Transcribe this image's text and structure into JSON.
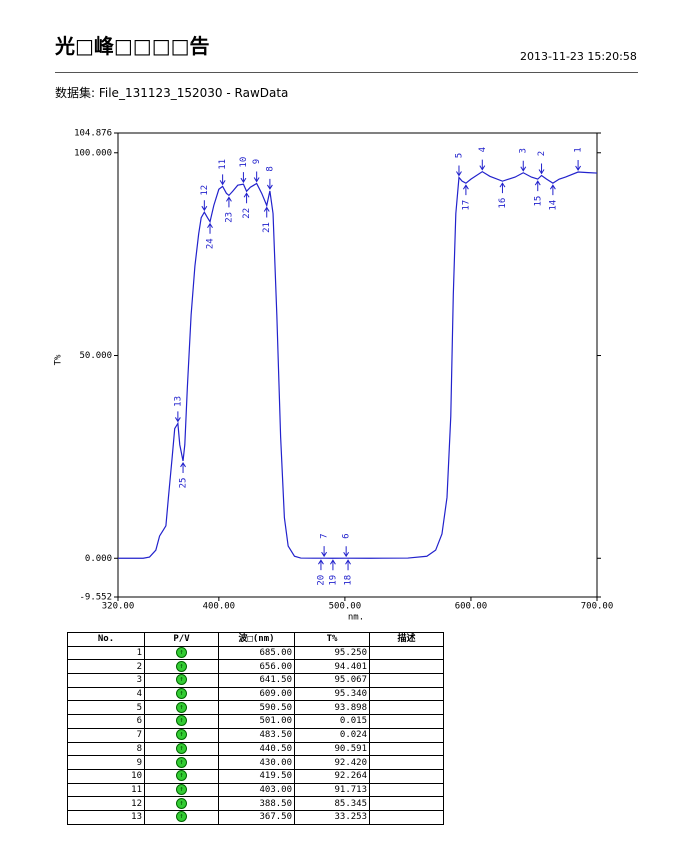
{
  "header": {
    "title": "光□峰□□□□告",
    "date": "2013-11-23  15:20:58",
    "subtitle": "数据集: File_131123_152030 - RawData"
  },
  "chart_data": {
    "type": "line",
    "x_label": "nm.",
    "y_label": "T%",
    "xlim": [
      320,
      700
    ],
    "xticks": [
      {
        "value": 320,
        "label": "320.00"
      },
      {
        "value": 400,
        "label": "400.00"
      },
      {
        "value": 500,
        "label": "500.00"
      },
      {
        "value": 600,
        "label": "600.00"
      },
      {
        "value": 700,
        "label": "700.00"
      }
    ],
    "ylim": [
      -9.552,
      104.876
    ],
    "yticks": [
      {
        "value": -9.552,
        "label": "-9.552"
      },
      {
        "value": 0,
        "label": "0.000"
      },
      {
        "value": 50,
        "label": "50.000"
      },
      {
        "value": 100,
        "label": "100.000"
      },
      {
        "value": 104.876,
        "label": "104.876"
      }
    ],
    "series": [
      {
        "color": "#2222cc",
        "x": [
          320,
          340,
          345,
          350,
          353,
          356,
          358,
          360,
          363,
          365,
          367.5,
          369,
          371.6,
          373,
          375,
          378,
          381,
          384,
          386,
          388.5,
          391,
          393,
          396,
          400,
          403,
          406,
          408,
          411,
          415,
          419.5,
          422,
          425,
          430,
          434,
          438,
          440.5,
          443,
          446,
          449,
          452,
          455,
          460,
          465,
          475,
          483.5,
          490,
          501,
          520,
          550,
          565,
          572,
          577,
          581,
          584,
          586,
          588,
          590.5,
          593,
          596,
          600,
          609,
          615,
          625,
          635,
          641.5,
          648,
          653,
          656,
          660,
          665,
          670,
          675,
          685,
          693,
          700
        ],
        "values": [
          0,
          0,
          0.3,
          2,
          5.5,
          7,
          8,
          15,
          25,
          32,
          33.253,
          28,
          24,
          28,
          42,
          60,
          72,
          80,
          84,
          85.345,
          84,
          83,
          87,
          91,
          91.713,
          90,
          89.5,
          90.5,
          92,
          92.264,
          90.5,
          91.5,
          92.42,
          90,
          87,
          90.591,
          85,
          60,
          30,
          10,
          3,
          0.5,
          0.05,
          0.02,
          0.024,
          0.01,
          0.015,
          0.01,
          0.05,
          0.5,
          2,
          6,
          15,
          35,
          65,
          85,
          93.898,
          93,
          92.5,
          93.5,
          95.34,
          94.2,
          93,
          94,
          95.067,
          94,
          93.5,
          94.401,
          93.5,
          92.5,
          93.5,
          94,
          95.25,
          95.1,
          95
        ]
      }
    ],
    "peaks": {
      "labels": [
        1,
        2,
        3,
        4,
        5,
        6,
        7,
        8,
        9,
        10,
        11,
        12,
        13
      ],
      "x": [
        685,
        656,
        641.5,
        609,
        590.5,
        501,
        483.5,
        440.5,
        430,
        419.5,
        403,
        388.5,
        367.5
      ],
      "values": [
        95.25,
        94.401,
        95.067,
        95.34,
        93.898,
        0.015,
        0.024,
        90.591,
        92.42,
        92.264,
        91.713,
        85.345,
        33.253
      ]
    },
    "valleys": {
      "labels": [
        14,
        15,
        16,
        17,
        18,
        19,
        20,
        21,
        22,
        23,
        24,
        25
      ],
      "x": [
        665,
        653,
        625,
        596,
        502.5,
        490.5,
        481,
        438,
        422,
        408,
        393,
        371.6
      ],
      "values": [
        92.5,
        93.5,
        93,
        92.5,
        0.01,
        0.01,
        0.02,
        87,
        90.5,
        89.5,
        83,
        24
      ]
    }
  },
  "table": {
    "columns": [
      "No.",
      "P/V",
      "波□(nm)",
      "T%",
      "描述"
    ],
    "rows": [
      {
        "no": 1,
        "wavelength": "685.00",
        "t": "95.250"
      },
      {
        "no": 2,
        "wavelength": "656.00",
        "t": "94.401"
      },
      {
        "no": 3,
        "wavelength": "641.50",
        "t": "95.067"
      },
      {
        "no": 4,
        "wavelength": "609.00",
        "t": "95.340"
      },
      {
        "no": 5,
        "wavelength": "590.50",
        "t": "93.898"
      },
      {
        "no": 6,
        "wavelength": "501.00",
        "t": "0.015"
      },
      {
        "no": 7,
        "wavelength": "483.50",
        "t": "0.024"
      },
      {
        "no": 8,
        "wavelength": "440.50",
        "t": "90.591"
      },
      {
        "no": 9,
        "wavelength": "430.00",
        "t": "92.420"
      },
      {
        "no": 10,
        "wavelength": "419.50",
        "t": "92.264"
      },
      {
        "no": 11,
        "wavelength": "403.00",
        "t": "91.713"
      },
      {
        "no": 12,
        "wavelength": "388.50",
        "t": "85.345"
      },
      {
        "no": 13,
        "wavelength": "367.50",
        "t": "33.253"
      }
    ]
  }
}
